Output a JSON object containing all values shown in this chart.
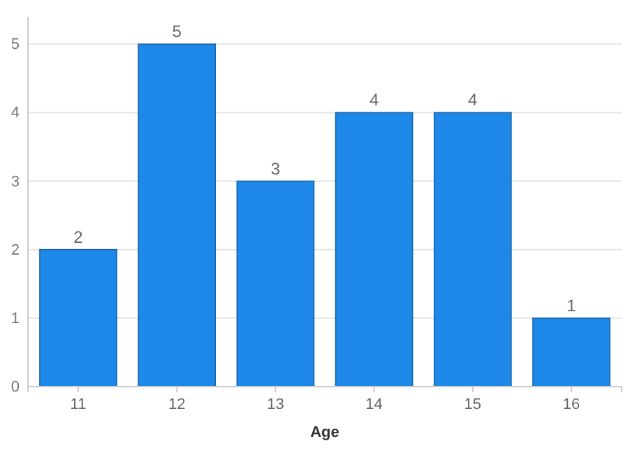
{
  "chart_data": {
    "type": "bar",
    "xlabel": "Age",
    "categories": [
      "11",
      "12",
      "13",
      "14",
      "15",
      "16"
    ],
    "values": [
      2,
      5,
      3,
      4,
      4,
      1
    ],
    "color": "#1e88e8",
    "ylim": [
      0,
      5.4
    ],
    "yticks": [
      0,
      1,
      2,
      3,
      4,
      5
    ],
    "grid": "y",
    "data_labels": true
  }
}
